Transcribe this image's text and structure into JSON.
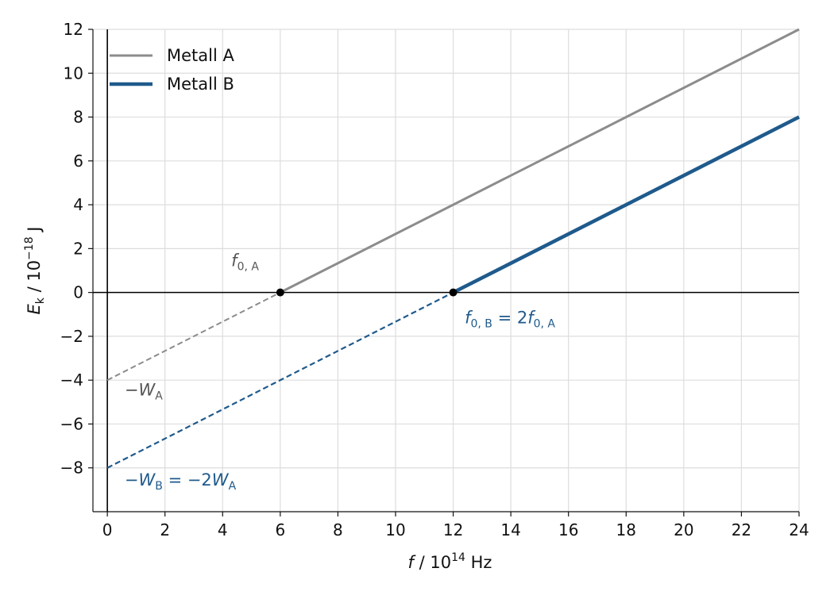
{
  "chart_data": {
    "type": "line",
    "xlabel": {
      "var": "f",
      "rest": " / 10",
      "exp": "14",
      "unit": " Hz"
    },
    "ylabel": {
      "var": "E",
      "sub": "k",
      "rest": " / 10",
      "exp": "−18",
      "unit": " J"
    },
    "xlim": [
      -0.5,
      24
    ],
    "ylim": [
      -10,
      12
    ],
    "xticks": [
      0,
      2,
      4,
      6,
      8,
      10,
      12,
      14,
      16,
      18,
      20,
      22,
      24
    ],
    "yticks": [
      -8,
      -6,
      -4,
      -2,
      0,
      2,
      4,
      6,
      8,
      10,
      12
    ],
    "grid": true,
    "legend_position": "top-left",
    "series": [
      {
        "name": "Metall A",
        "color": "#8c8c8c",
        "intercept": -4,
        "threshold": 6,
        "points": [
          [
            0,
            -4
          ],
          [
            6,
            0
          ],
          [
            24,
            12
          ]
        ]
      },
      {
        "name": "Metall B",
        "color": "#1f5a8c",
        "intercept": -8,
        "threshold": 12,
        "points": [
          [
            0,
            -8
          ],
          [
            12,
            0
          ],
          [
            24,
            8
          ]
        ]
      }
    ],
    "markers": [
      [
        6,
        0
      ],
      [
        12,
        0
      ]
    ],
    "annotations": [
      {
        "id": "f0A",
        "x": 4.3,
        "y": 1.2,
        "color": "#555555",
        "parts": [
          {
            "t": "f",
            "i": true
          },
          {
            "t": "0, A",
            "s": "sub"
          }
        ]
      },
      {
        "id": "f0B",
        "x": 12.4,
        "y": -1.4,
        "color": "#1f5a8c",
        "parts": [
          {
            "t": "f",
            "i": true
          },
          {
            "t": "0, B",
            "s": "sub"
          },
          {
            "t": " = 2"
          },
          {
            "t": "f",
            "i": true
          },
          {
            "t": "0, A",
            "s": "sub"
          }
        ]
      },
      {
        "id": "WA",
        "x": 0.6,
        "y": -4.7,
        "color": "#555555",
        "parts": [
          {
            "t": "−"
          },
          {
            "t": "W",
            "i": true
          },
          {
            "t": "A",
            "s": "sub"
          }
        ]
      },
      {
        "id": "WB",
        "x": 0.6,
        "y": -8.8,
        "color": "#1f5a8c",
        "parts": [
          {
            "t": "−"
          },
          {
            "t": "W",
            "i": true
          },
          {
            "t": "B",
            "s": "sub"
          },
          {
            "t": " = −2"
          },
          {
            "t": "W",
            "i": true
          },
          {
            "t": "A",
            "s": "sub"
          }
        ]
      }
    ]
  }
}
